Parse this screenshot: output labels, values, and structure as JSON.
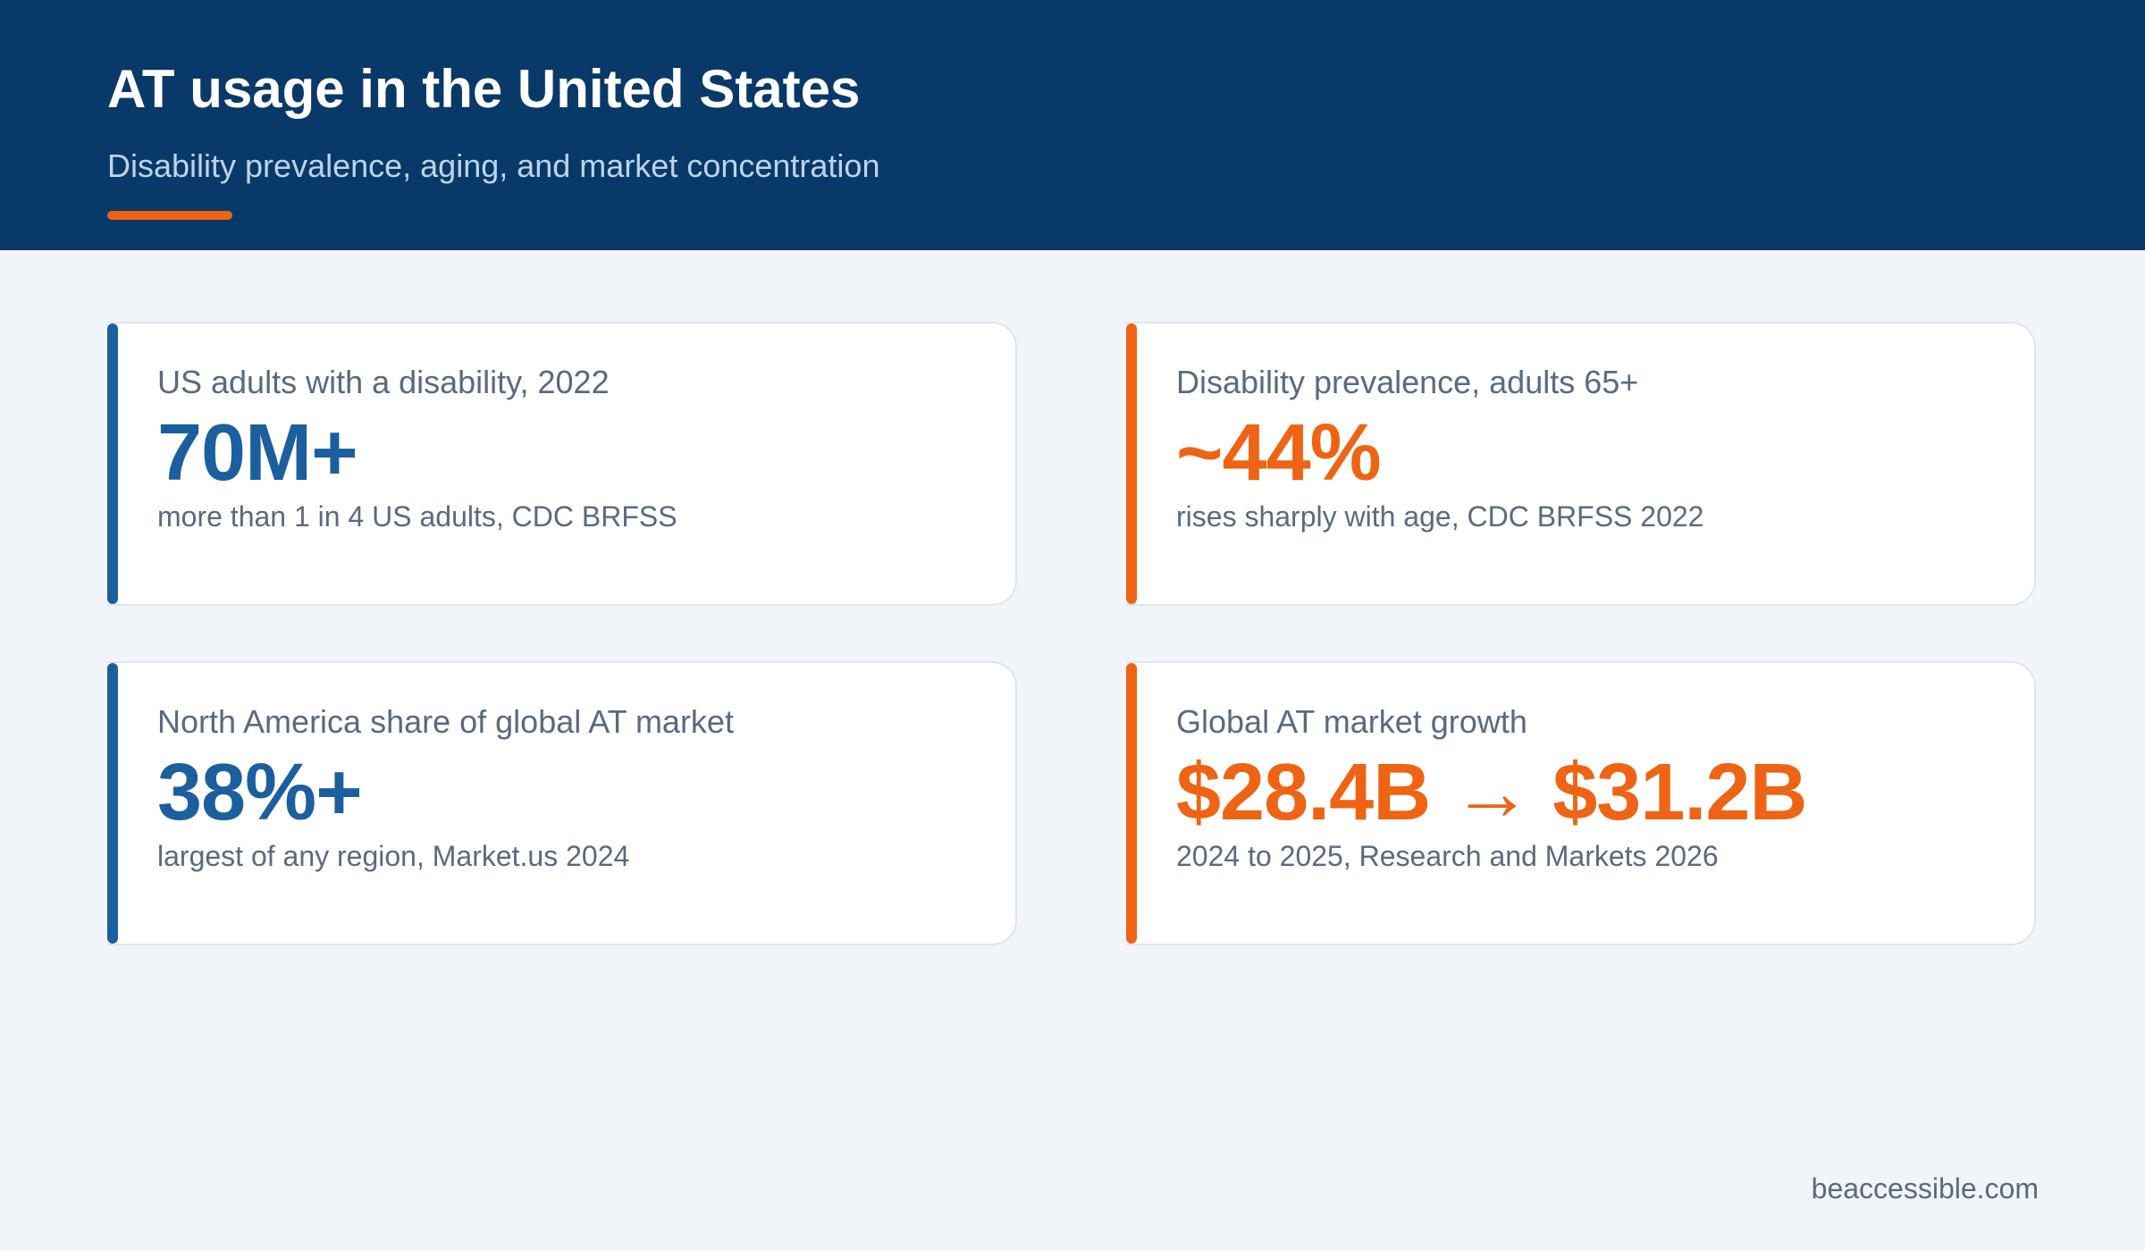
{
  "header": {
    "title": "AT usage in the United States",
    "subtitle": "Disability prevalence, aging, and market concentration",
    "accent_color": "#ee6414",
    "background_color": "#093968"
  },
  "cards": [
    {
      "label": "US adults with a disability, 2022",
      "value": "70M+",
      "note": "more than 1 in 4 US adults, CDC BRFSS",
      "color": "#1c5f9e"
    },
    {
      "label": "Disability prevalence, adults 65+",
      "value": "~44%",
      "note": "rises sharply with age, CDC BRFSS 2022",
      "color": "#ee6414"
    },
    {
      "label": "North America share of global AT market",
      "value": "38%+",
      "note": "largest of any region, Market.us 2024",
      "color": "#1c5f9e"
    },
    {
      "label": "Global AT market growth",
      "value": "$28.4B → $31.2B",
      "note": "2024 to 2025, Research and Markets 2026",
      "color": "#ee6414"
    }
  ],
  "footer": {
    "site": "beaccessible.com"
  }
}
